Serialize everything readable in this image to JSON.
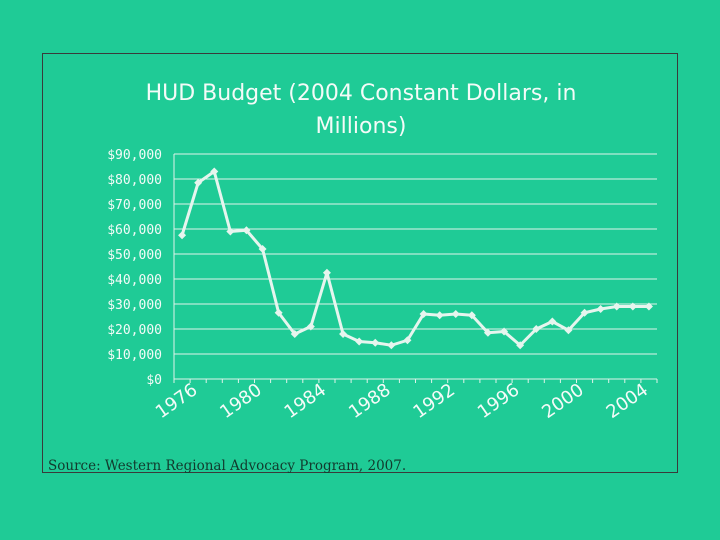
{
  "chart_data": {
    "type": "line",
    "title": "HUD Budget (2004 Constant Dollars, in Millions)",
    "xlabel": "",
    "ylabel": "",
    "ylim": [
      0,
      90000
    ],
    "grid": true,
    "yticks": [
      {
        "value": 0,
        "label": "$0"
      },
      {
        "value": 10000,
        "label": "$10,000"
      },
      {
        "value": 20000,
        "label": "$20,000"
      },
      {
        "value": 30000,
        "label": "$30,000"
      },
      {
        "value": 40000,
        "label": "$40,000"
      },
      {
        "value": 50000,
        "label": "$50,000"
      },
      {
        "value": 60000,
        "label": "$60,000"
      },
      {
        "value": 70000,
        "label": "$70,000"
      },
      {
        "value": 80000,
        "label": "$80,000"
      },
      {
        "value": 90000,
        "label": "$90,000"
      }
    ],
    "xticks": [
      "1976",
      "1980",
      "1984",
      "1988",
      "1992",
      "1996",
      "2000",
      "2004"
    ],
    "x": [
      1976,
      1977,
      1978,
      1979,
      1980,
      1981,
      1982,
      1983,
      1984,
      1985,
      1986,
      1987,
      1988,
      1989,
      1990,
      1991,
      1992,
      1993,
      1994,
      1995,
      1996,
      1997,
      1998,
      1999,
      2000,
      2001,
      2002,
      2003,
      2004,
      2005
    ],
    "series": [
      {
        "values": [
          57500,
          78500,
          83000,
          59000,
          59500,
          52000,
          26500,
          18000,
          21000,
          42500,
          18000,
          15000,
          14500,
          13500,
          15500,
          26000,
          25500,
          26000,
          25500,
          18500,
          19000,
          13500,
          20000,
          23000,
          19500,
          26500,
          28000,
          29000,
          29000,
          29000
        ]
      }
    ],
    "colors": {
      "background": "#1fcb96",
      "line": "#e6f5ee",
      "text": "#f4fbf8",
      "grid": "#dff3ea",
      "frame": "#3a3a3a"
    }
  },
  "source_note": "Source: Western Regional Advocacy Program, 2007."
}
